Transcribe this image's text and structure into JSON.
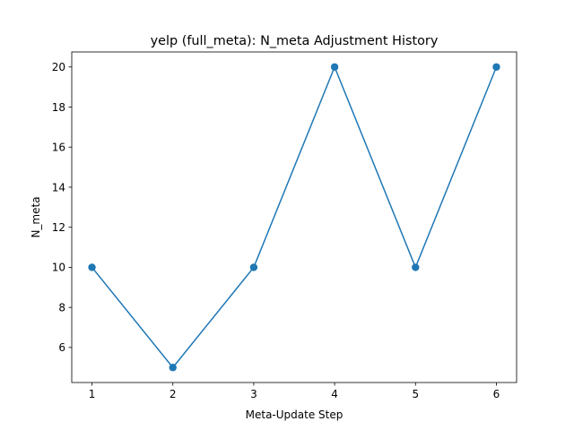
{
  "chart_data": {
    "type": "line",
    "title": "yelp (full_meta): N_meta Adjustment History",
    "xlabel": "Meta-Update Step",
    "ylabel": "N_meta",
    "x": [
      1,
      2,
      3,
      4,
      5,
      6
    ],
    "series": [
      {
        "values": [
          10,
          5,
          10,
          20,
          10,
          20
        ],
        "color": "#1f77b4"
      }
    ],
    "xlim": [
      0.75,
      6.25
    ],
    "ylim": [
      4.25,
      20.75
    ],
    "xticks": [
      1,
      2,
      3,
      4,
      5,
      6
    ],
    "yticks": [
      6,
      8,
      10,
      12,
      14,
      16,
      18,
      20
    ],
    "grid": false,
    "legend": "none",
    "markers": "circle"
  }
}
